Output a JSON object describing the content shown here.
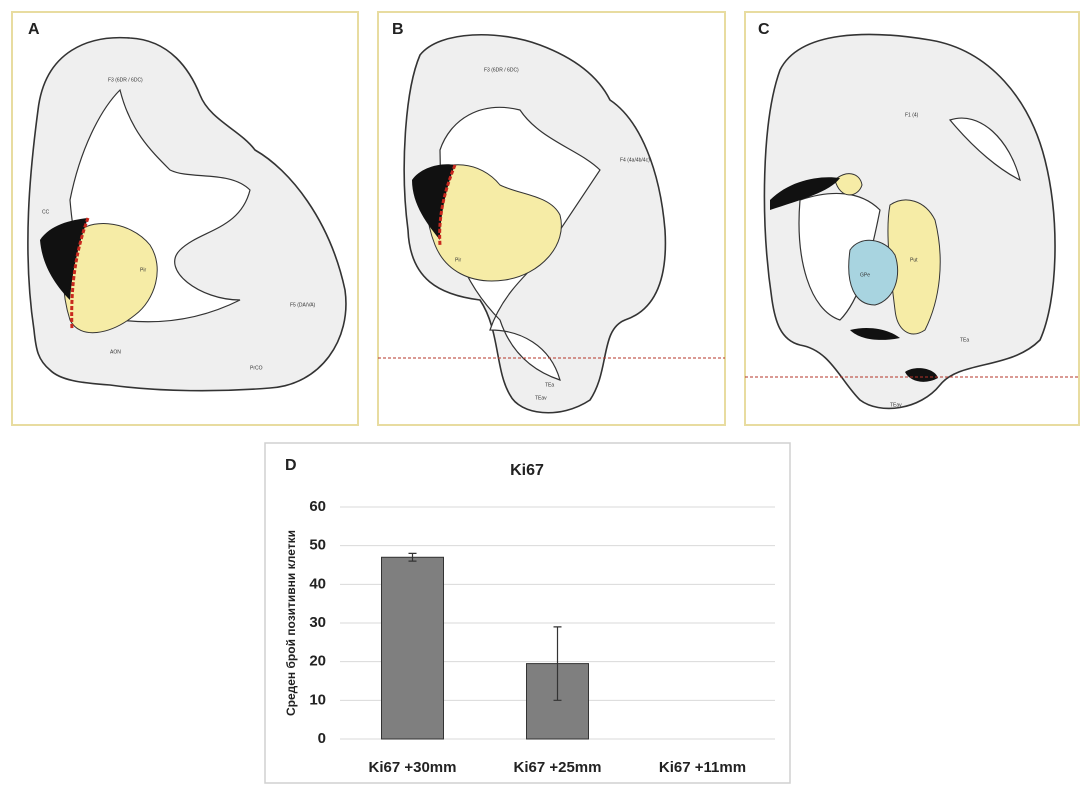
{
  "panels": [
    {
      "letter": "A",
      "labels": [
        "F3 (6DR / 6DC)",
        "F5 (DA/VA)",
        "CC",
        "PrCO",
        "AON",
        "Pir"
      ]
    },
    {
      "letter": "B",
      "labels": [
        "F3 (6DR / 6DC)",
        "F4 (4a/4b/4c)",
        "Pir",
        "TEa",
        "TEav"
      ]
    },
    {
      "letter": "C",
      "labels": [
        "F1 (4)",
        "Put",
        "GPe",
        "TEa",
        "TEav"
      ]
    }
  ],
  "chart_data": {
    "type": "bar",
    "panel": "D",
    "title": "Ki67",
    "y_label": "Среден брой позитивни клетки",
    "categories": [
      "Ki67 +30mm",
      "Ki67 +25mm",
      "Ki67 +11mm"
    ],
    "values": [
      47,
      19.5,
      0
    ],
    "errors": [
      1,
      9.5,
      0
    ],
    "color": "#7f7f7f",
    "ylim": [
      0,
      60
    ],
    "yticks": [
      0,
      10,
      20,
      30,
      40,
      50,
      60
    ],
    "grid": true
  }
}
